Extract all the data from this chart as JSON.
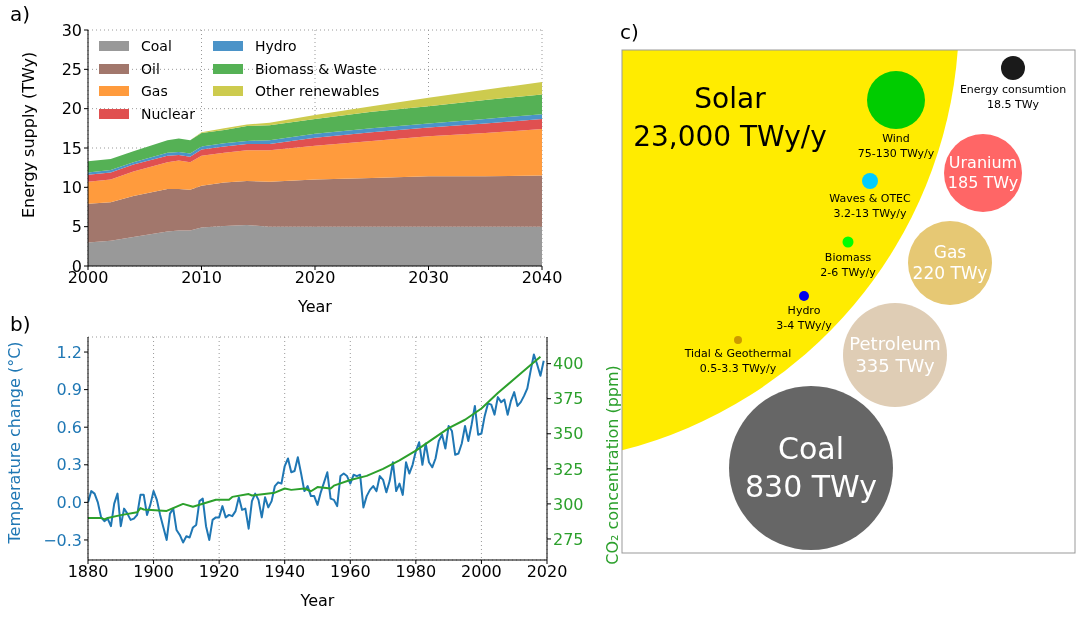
{
  "chart_data": [
    {
      "type": "area",
      "title": "a)",
      "xlabel": "Year",
      "ylabel": "Energy supply (TWy)",
      "stacked": true,
      "legend": "top left",
      "grid": true,
      "xlim": [
        2000,
        2040
      ],
      "xticks": [
        2000,
        2010,
        2020,
        2030,
        2040
      ],
      "ylim": [
        0,
        30
      ],
      "yticks": [
        0,
        5,
        10,
        15,
        20,
        25,
        30
      ],
      "x": [
        2000,
        2002,
        2004,
        2007,
        2008,
        2009,
        2010,
        2012,
        2014,
        2016,
        2020,
        2025,
        2030,
        2035,
        2040
      ],
      "series": [
        {
          "name": "Coal",
          "color": "#999999",
          "values": [
            3.0,
            3.2,
            3.7,
            4.4,
            4.5,
            4.5,
            4.9,
            5.1,
            5.2,
            5.0,
            5.0,
            5.0,
            5.0,
            5.0,
            5.0
          ]
        },
        {
          "name": "Oil",
          "color": "#a2776c",
          "values": [
            4.9,
            4.9,
            5.2,
            5.4,
            5.3,
            5.2,
            5.3,
            5.5,
            5.6,
            5.7,
            6.0,
            6.2,
            6.4,
            6.4,
            6.5
          ]
        },
        {
          "name": "Gas",
          "color": "#ff9b3d",
          "values": [
            2.8,
            2.9,
            3.1,
            3.4,
            3.6,
            3.5,
            3.8,
            3.8,
            3.9,
            4.0,
            4.3,
            4.7,
            5.1,
            5.5,
            5.9
          ]
        },
        {
          "name": "Nuclear",
          "color": "#e05050",
          "values": [
            0.9,
            0.9,
            0.9,
            0.8,
            0.7,
            0.7,
            0.8,
            0.8,
            0.8,
            0.8,
            1.0,
            1.1,
            1.1,
            1.2,
            1.3
          ]
        },
        {
          "name": "Hydro",
          "color": "#4b93c8",
          "values": [
            0.3,
            0.3,
            0.3,
            0.4,
            0.4,
            0.4,
            0.4,
            0.4,
            0.4,
            0.5,
            0.5,
            0.5,
            0.5,
            0.6,
            0.6
          ]
        },
        {
          "name": "Biomass & Waste",
          "color": "#55b155",
          "values": [
            1.4,
            1.4,
            1.4,
            1.6,
            1.7,
            1.7,
            1.7,
            1.7,
            1.9,
            1.9,
            1.9,
            2.1,
            2.2,
            2.4,
            2.5
          ]
        },
        {
          "name": "Other renewables",
          "color": "#cdcb4e",
          "values": [
            0,
            0,
            0,
            0,
            0,
            0,
            0.1,
            0.2,
            0.2,
            0.3,
            0.5,
            0.7,
            1.1,
            1.3,
            1.6
          ]
        }
      ]
    },
    {
      "type": "line",
      "title": "b)",
      "xlabel": "Year",
      "ylabel": "Temperature change (°C)",
      "y2label": "CO₂ concentration (ppm)",
      "grid": true,
      "marker": "none",
      "line_style": "solid",
      "xlim": [
        1880,
        2020
      ],
      "xticks": [
        1880,
        1900,
        1920,
        1940,
        1960,
        1980,
        2000,
        2020
      ],
      "ylim": [
        -0.46,
        1.32
      ],
      "yticks": [
        {
          "value": -0.3,
          "label": "−0.3"
        },
        {
          "value": 0,
          "label": "0.0"
        },
        {
          "value": 0.3,
          "label": "0.3"
        },
        {
          "value": 0.6,
          "label": "0.6"
        },
        {
          "value": 0.9,
          "label": "0.9"
        },
        {
          "value": 1.2,
          "label": "1.2"
        }
      ],
      "y2lim": [
        260,
        419
      ],
      "y2ticks": [
        275,
        300,
        325,
        350,
        375,
        400
      ],
      "x": [
        1880,
        1881,
        1882,
        1883,
        1884,
        1885,
        1886,
        1887,
        1888,
        1889,
        1890,
        1891,
        1892,
        1893,
        1894,
        1895,
        1896,
        1897,
        1898,
        1899,
        1900,
        1901,
        1902,
        1903,
        1904,
        1905,
        1906,
        1907,
        1908,
        1909,
        1910,
        1911,
        1912,
        1913,
        1914,
        1915,
        1916,
        1917,
        1918,
        1919,
        1920,
        1921,
        1922,
        1923,
        1924,
        1925,
        1926,
        1927,
        1928,
        1929,
        1930,
        1931,
        1932,
        1933,
        1934,
        1935,
        1936,
        1937,
        1938,
        1939,
        1940,
        1941,
        1942,
        1943,
        1944,
        1945,
        1946,
        1947,
        1948,
        1949,
        1950,
        1951,
        1952,
        1953,
        1954,
        1955,
        1956,
        1957,
        1958,
        1959,
        1960,
        1961,
        1962,
        1963,
        1964,
        1965,
        1966,
        1967,
        1968,
        1969,
        1970,
        1971,
        1972,
        1973,
        1974,
        1975,
        1976,
        1977,
        1978,
        1979,
        1980,
        1981,
        1982,
        1983,
        1984,
        1985,
        1986,
        1987,
        1988,
        1989,
        1990,
        1991,
        1992,
        1993,
        1994,
        1995,
        1996,
        1997,
        1998,
        1999,
        2000,
        2001,
        2002,
        2003,
        2004,
        2005,
        2006,
        2007,
        2008,
        2009,
        2010,
        2011,
        2012,
        2013,
        2014,
        2015,
        2016,
        2017,
        2018,
        2019
      ],
      "series": [
        {
          "color": "#1f77b4",
          "values": [
            0.0,
            0.09,
            0.07,
            0.0,
            -0.12,
            -0.15,
            -0.13,
            -0.19,
            -0.01,
            0.07,
            -0.19,
            -0.05,
            -0.09,
            -0.14,
            -0.13,
            -0.1,
            0.06,
            0.06,
            -0.1,
            -0.02,
            0.09,
            0.02,
            -0.1,
            -0.2,
            -0.3,
            -0.09,
            -0.05,
            -0.22,
            -0.26,
            -0.32,
            -0.27,
            -0.28,
            -0.2,
            -0.18,
            0.01,
            0.03,
            -0.19,
            -0.3,
            -0.14,
            -0.12,
            -0.12,
            -0.03,
            -0.12,
            -0.1,
            -0.11,
            -0.07,
            0.04,
            -0.06,
            -0.05,
            -0.21,
            0.01,
            0.07,
            0.02,
            -0.12,
            0.04,
            -0.04,
            0.01,
            0.13,
            0.16,
            0.15,
            0.29,
            0.35,
            0.24,
            0.25,
            0.36,
            0.23,
            0.09,
            0.13,
            0.05,
            0.05,
            -0.02,
            0.08,
            0.16,
            0.24,
            0.03,
            0.02,
            -0.03,
            0.21,
            0.23,
            0.21,
            0.15,
            0.22,
            0.21,
            0.22,
            -0.04,
            0.05,
            0.1,
            0.13,
            0.09,
            0.21,
            0.18,
            0.08,
            0.17,
            0.32,
            0.09,
            0.15,
            0.06,
            0.32,
            0.23,
            0.3,
            0.41,
            0.48,
            0.3,
            0.47,
            0.32,
            0.28,
            0.35,
            0.49,
            0.54,
            0.43,
            0.61,
            0.57,
            0.38,
            0.39,
            0.47,
            0.61,
            0.49,
            0.62,
            0.77,
            0.54,
            0.55,
            0.69,
            0.79,
            0.78,
            0.7,
            0.84,
            0.8,
            0.82,
            0.7,
            0.81,
            0.88,
            0.77,
            0.8,
            0.85,
            0.91,
            1.05,
            1.18,
            1.1,
            1.01,
            1.13
          ]
        },
        {
          "color": "#2ca02c",
          "axis": "y2",
          "x": [
            1880,
            1884,
            1885,
            1886,
            1890,
            1895,
            1896,
            1897,
            1904,
            1909,
            1912,
            1919,
            1923,
            1924,
            1929,
            1930,
            1937,
            1940,
            1942,
            1946,
            1948,
            1950,
            1954,
            1955,
            1960,
            1965,
            1970,
            1975,
            1980,
            1985,
            1990,
            1995,
            2000,
            2005,
            2010,
            2015,
            2018
          ],
          "values": [
            290,
            290,
            289,
            290,
            292,
            294,
            297,
            296,
            295,
            300,
            298,
            303,
            303,
            305,
            307,
            306,
            308,
            311,
            310,
            311,
            309,
            312,
            311,
            313,
            317,
            320,
            325,
            331,
            338,
            346,
            354,
            360,
            368,
            379,
            389,
            399,
            405
          ]
        }
      ]
    },
    {
      "type": "other",
      "title": "c)",
      "categories": [
        "Solar",
        "Wind",
        "Waves & OTEC",
        "Biomass",
        "Hydro",
        "Tidal & Geothermal",
        "Energy consumtion",
        "Uranium",
        "Gas",
        "Petroleum",
        "Coal"
      ],
      "value_labels": [
        "23,000 TWy/y",
        "75-130 TWy/y",
        "3.2-13 TWy/y",
        "2-6 TWy/y",
        "3-4 TWy/y",
        "0.5-3.3 TWy/y",
        "18.5 TWy",
        "185 TWy",
        "220 TWy",
        "335 TWy",
        "830 TWy"
      ],
      "colors": [
        "#ffec00",
        "#00cc00",
        "#00ccff",
        "#00ff00",
        "#0000ee",
        "#cc9900",
        "#1a1a1a",
        "#ff6666",
        "#e6c874",
        "#dfcdb5",
        "#666666"
      ]
    }
  ]
}
